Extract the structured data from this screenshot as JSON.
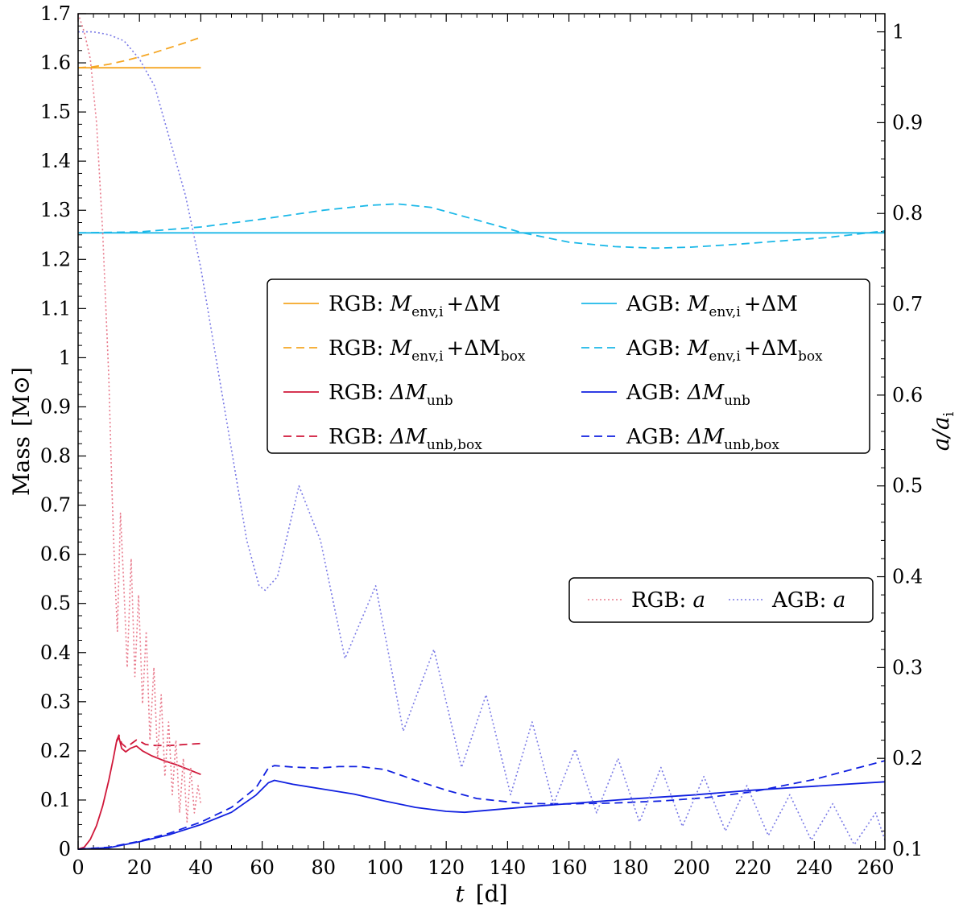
{
  "chart_data": {
    "type": "line",
    "xlabel": "t",
    "xlabel_unit": "[d]",
    "ylabel": "Mass",
    "ylabel_unit": "[M⊙]",
    "y2label": "a/a",
    "y2label_sub": "i",
    "xlim": [
      0,
      263
    ],
    "ylim": [
      0,
      1.7
    ],
    "y2lim": [
      0.1,
      1.02
    ],
    "x_ticks": [
      0,
      20,
      40,
      60,
      80,
      100,
      120,
      140,
      160,
      180,
      200,
      220,
      240,
      260
    ],
    "x_tick_labels": [
      "0",
      "20",
      "40",
      "60",
      "80",
      "100",
      "120",
      "140",
      "160",
      "180",
      "200",
      "220",
      "240",
      "260"
    ],
    "y_ticks": [
      0,
      0.1,
      0.2,
      0.3,
      0.4,
      0.5,
      0.6,
      0.7,
      0.8,
      0.9,
      1.0,
      1.1,
      1.2,
      1.3,
      1.4,
      1.5,
      1.6,
      1.7
    ],
    "y_tick_labels": [
      "0",
      "0.1",
      "0.2",
      "0.3",
      "0.4",
      "0.5",
      "0.6",
      "0.7",
      "0.8",
      "0.9",
      "1",
      "1.1",
      "1.2",
      "1.3",
      "1.4",
      "1.5",
      "1.6",
      "1.7"
    ],
    "y2_ticks": [
      0.1,
      0.2,
      0.3,
      0.4,
      0.5,
      0.6,
      0.7,
      0.8,
      0.9,
      1.0
    ],
    "y2_tick_labels": [
      "0.1",
      "0.2",
      "0.3",
      "0.4",
      "0.5",
      "0.6",
      "0.7",
      "0.8",
      "0.9",
      "1"
    ],
    "colors": {
      "rgb_env": "#f5a623",
      "agb_env": "#1bb8e8",
      "rgb_unb": "#d0183a",
      "agb_unb": "#1020e0",
      "rgb_a": "#e87a8c",
      "agb_a": "#7a7ae6"
    },
    "series": [
      {
        "key": "rgb_env",
        "axis": "left",
        "style": "solid",
        "name": "RGB: M_env,i + ΔM",
        "x": [
          0,
          40
        ],
        "y": [
          1.59,
          1.59
        ]
      },
      {
        "key": "rgb_env",
        "axis": "left",
        "style": "dashed",
        "name": "RGB: M_env,i + ΔM_box",
        "x": [
          0,
          5,
          10,
          15,
          20,
          25,
          30,
          35,
          40
        ],
        "y": [
          1.59,
          1.592,
          1.597,
          1.604,
          1.612,
          1.621,
          1.631,
          1.641,
          1.652
        ]
      },
      {
        "key": "agb_env",
        "axis": "left",
        "style": "solid",
        "name": "AGB: M_env,i + ΔM",
        "x": [
          0,
          263
        ],
        "y": [
          1.254,
          1.254
        ]
      },
      {
        "key": "agb_env",
        "axis": "left",
        "style": "dashed",
        "name": "AGB: M_env,i + ΔM_box",
        "x": [
          0,
          20,
          40,
          60,
          80,
          95,
          104,
          115,
          130,
          145,
          160,
          175,
          188,
          200,
          215,
          230,
          245,
          263
        ],
        "y": [
          1.254,
          1.256,
          1.266,
          1.282,
          1.3,
          1.31,
          1.313,
          1.306,
          1.28,
          1.254,
          1.235,
          1.226,
          1.223,
          1.225,
          1.231,
          1.238,
          1.245,
          1.258
        ]
      },
      {
        "key": "rgb_unb",
        "axis": "left",
        "style": "solid",
        "name": "RGB: ΔM_unb",
        "x": [
          0,
          2,
          4,
          6,
          8,
          10,
          11.5,
          12.5,
          13.3,
          14.2,
          15.5,
          17,
          19,
          21,
          24,
          28,
          32,
          36,
          40
        ],
        "y": [
          0,
          0.004,
          0.02,
          0.048,
          0.088,
          0.14,
          0.185,
          0.218,
          0.228,
          0.205,
          0.198,
          0.205,
          0.21,
          0.2,
          0.19,
          0.18,
          0.172,
          0.162,
          0.152
        ]
      },
      {
        "key": "rgb_unb",
        "axis": "left",
        "style": "dashed",
        "name": "RGB: ΔM_unb,box",
        "x": [
          12.5,
          13.3,
          14.2,
          15.5,
          17,
          19,
          20,
          22,
          25,
          30,
          35,
          40
        ],
        "y": [
          0.22,
          0.232,
          0.215,
          0.208,
          0.213,
          0.222,
          0.22,
          0.213,
          0.211,
          0.211,
          0.213,
          0.215
        ]
      },
      {
        "key": "agb_unb",
        "axis": "left",
        "style": "solid",
        "name": "AGB: ΔM_unb",
        "x": [
          0,
          10,
          20,
          30,
          40,
          50,
          58,
          62,
          64,
          70,
          80,
          90,
          100,
          110,
          120,
          126,
          135,
          150,
          165,
          180,
          200,
          220,
          240,
          263
        ],
        "y": [
          0,
          0.003,
          0.015,
          0.03,
          0.05,
          0.075,
          0.11,
          0.135,
          0.14,
          0.132,
          0.122,
          0.112,
          0.098,
          0.085,
          0.077,
          0.075,
          0.08,
          0.088,
          0.095,
          0.102,
          0.11,
          0.12,
          0.128,
          0.137
        ]
      },
      {
        "key": "agb_unb",
        "axis": "left",
        "style": "dashed",
        "name": "AGB: ΔM_unb,box",
        "x": [
          0,
          10,
          20,
          30,
          40,
          50,
          58,
          62,
          64,
          70,
          78,
          85,
          92,
          100,
          110,
          120,
          130,
          145,
          160,
          175,
          190,
          205,
          220,
          240,
          263
        ],
        "y": [
          0,
          0.004,
          0.016,
          0.033,
          0.055,
          0.085,
          0.125,
          0.165,
          0.17,
          0.167,
          0.165,
          0.168,
          0.168,
          0.162,
          0.14,
          0.12,
          0.103,
          0.093,
          0.092,
          0.094,
          0.098,
          0.105,
          0.117,
          0.142,
          0.18
        ]
      },
      {
        "key": "rgb_a",
        "axis": "right",
        "style": "dotted",
        "name": "RGB: a",
        "x": [
          0,
          2,
          4,
          6,
          8,
          10,
          11,
          12,
          12.8,
          13.8,
          14.9,
          16,
          17.3,
          18.5,
          19.7,
          21,
          22.2,
          23.4,
          24.7,
          25.9,
          27.1,
          28.3,
          29.5,
          30.7,
          31.9,
          33.1,
          34.3,
          35.5,
          36.7,
          37.9,
          39.1,
          40
        ],
        "y": [
          1.02,
          1.0,
          0.97,
          0.9,
          0.78,
          0.62,
          0.5,
          0.4,
          0.34,
          0.47,
          0.39,
          0.3,
          0.42,
          0.29,
          0.38,
          0.26,
          0.34,
          0.22,
          0.3,
          0.2,
          0.27,
          0.18,
          0.24,
          0.16,
          0.22,
          0.14,
          0.2,
          0.13,
          0.19,
          0.14,
          0.17,
          0.15
        ]
      },
      {
        "key": "agb_a",
        "axis": "right",
        "style": "dotted",
        "name": "AGB: a",
        "x": [
          0,
          5,
          10,
          15,
          20,
          25,
          30,
          35,
          40,
          45,
          50,
          55,
          59,
          61,
          65,
          72,
          79,
          87,
          97,
          106,
          116,
          125,
          133,
          141,
          148,
          155,
          162,
          169,
          176,
          183,
          190,
          197,
          204,
          211,
          218,
          225,
          232,
          239,
          246,
          253,
          260,
          263
        ],
        "y": [
          1.0,
          1.0,
          0.997,
          0.99,
          0.97,
          0.94,
          0.88,
          0.82,
          0.74,
          0.64,
          0.54,
          0.44,
          0.39,
          0.385,
          0.4,
          0.5,
          0.44,
          0.31,
          0.39,
          0.23,
          0.32,
          0.19,
          0.27,
          0.16,
          0.24,
          0.15,
          0.21,
          0.14,
          0.2,
          0.13,
          0.19,
          0.125,
          0.18,
          0.12,
          0.17,
          0.115,
          0.16,
          0.11,
          0.15,
          0.105,
          0.14,
          0.11
        ]
      }
    ],
    "legend_lines": [
      {
        "key": "rgb_env",
        "style": "solid",
        "label": "RGB: ",
        "math": "M",
        "sub": "env,i",
        "rest": "+ΔM",
        "sub2": ""
      },
      {
        "key": "agb_env",
        "style": "solid",
        "label": "AGB: ",
        "math": "M",
        "sub": "env,i",
        "rest": "+ΔM",
        "sub2": ""
      },
      {
        "key": "rgb_env",
        "style": "dashed",
        "label": "RGB: ",
        "math": "M",
        "sub": "env,i",
        "rest": "+ΔM",
        "sub2": "box"
      },
      {
        "key": "agb_env",
        "style": "dashed",
        "label": "AGB: ",
        "math": "M",
        "sub": "env,i",
        "rest": "+ΔM",
        "sub2": "box"
      },
      {
        "key": "rgb_unb",
        "style": "solid",
        "label": "RGB: ",
        "math": "ΔM",
        "sub": "unb",
        "rest": "",
        "sub2": ""
      },
      {
        "key": "agb_unb",
        "style": "solid",
        "label": "AGB: ",
        "math": "ΔM",
        "sub": "unb",
        "rest": "",
        "sub2": ""
      },
      {
        "key": "rgb_unb",
        "style": "dashed",
        "label": "RGB: ",
        "math": "ΔM",
        "sub": "unb,box",
        "rest": "",
        "sub2": ""
      },
      {
        "key": "agb_unb",
        "style": "dashed",
        "label": "AGB: ",
        "math": "ΔM",
        "sub": "unb,box",
        "rest": "",
        "sub2": ""
      }
    ],
    "legend_a": [
      {
        "key": "rgb_a",
        "style": "dotted",
        "label": "RGB: ",
        "math": "a"
      },
      {
        "key": "agb_a",
        "style": "dotted",
        "label": "AGB: ",
        "math": "a"
      }
    ],
    "legend_placement": "center-right"
  }
}
